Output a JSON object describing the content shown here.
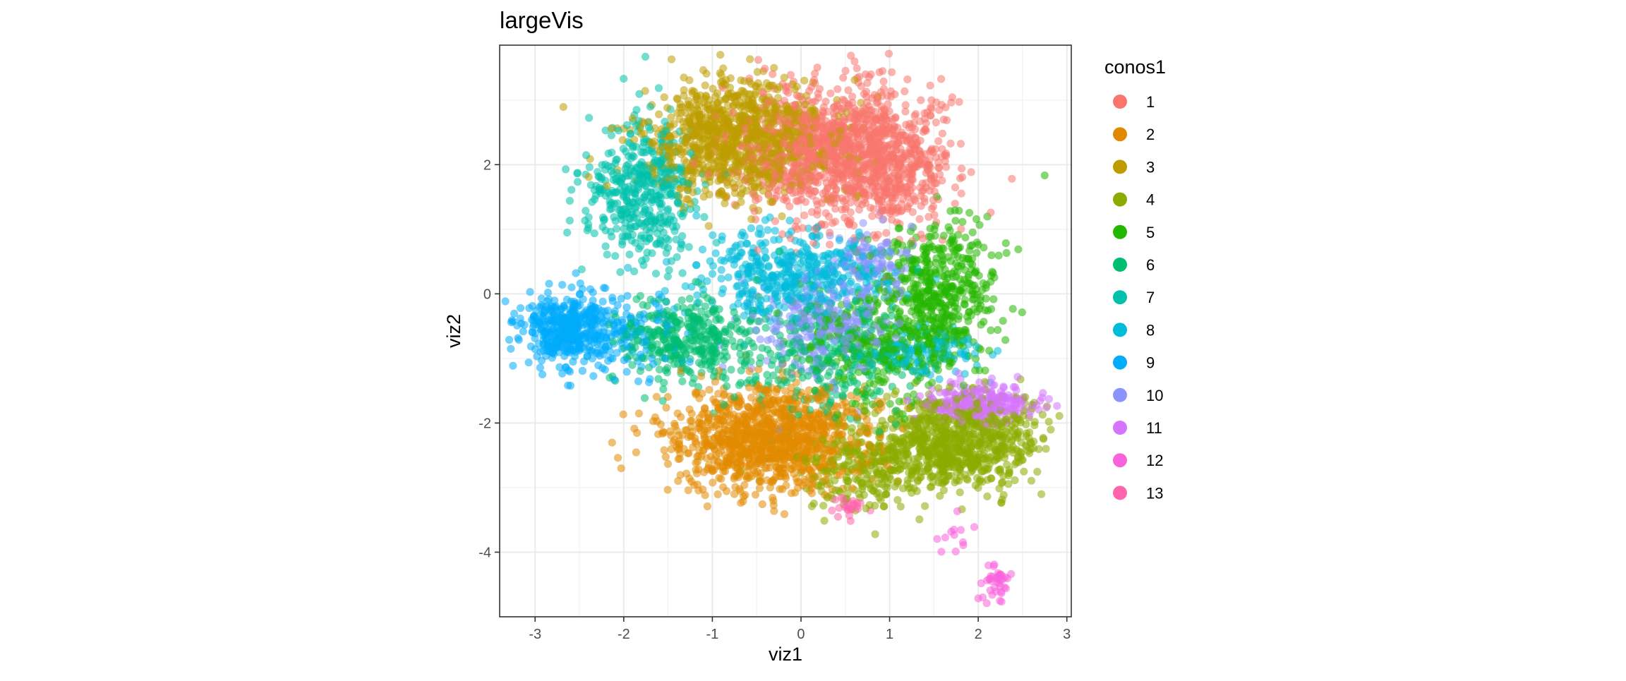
{
  "chart_data": {
    "type": "scatter",
    "title": "largeVis",
    "xlabel": "viz1",
    "ylabel": "viz2",
    "xlim": [
      -3.4,
      3.05
    ],
    "ylim": [
      -5.0,
      3.85
    ],
    "x_ticks": [
      -3,
      -2,
      -1,
      0,
      1,
      2,
      3
    ],
    "y_ticks": [
      -4,
      -2,
      0,
      2
    ],
    "grid": true,
    "legend": {
      "title": "conos1",
      "position": "right",
      "entries": [
        "1",
        "2",
        "3",
        "4",
        "5",
        "6",
        "7",
        "8",
        "9",
        "10",
        "11",
        "12",
        "13"
      ]
    },
    "series": [
      {
        "name": "1",
        "color": "#F8766D",
        "clusters": [
          {
            "cx": 0.35,
            "cy": 2.2,
            "sx": 0.5,
            "sy": 0.5,
            "n": 1100
          },
          {
            "cx": 1.1,
            "cy": 1.9,
            "sx": 0.3,
            "sy": 0.5,
            "n": 300
          }
        ]
      },
      {
        "name": "2",
        "color": "#E18A00",
        "clusters": [
          {
            "cx": -0.35,
            "cy": -2.25,
            "sx": 0.55,
            "sy": 0.4,
            "n": 1100
          }
        ]
      },
      {
        "name": "3",
        "color": "#BE9C00",
        "clusters": [
          {
            "cx": -0.7,
            "cy": 2.4,
            "sx": 0.5,
            "sy": 0.45,
            "n": 1000
          }
        ]
      },
      {
        "name": "4",
        "color": "#8CAB00",
        "clusters": [
          {
            "cx": 1.75,
            "cy": -2.3,
            "sx": 0.45,
            "sy": 0.35,
            "n": 800
          },
          {
            "cx": 0.7,
            "cy": -2.7,
            "sx": 0.35,
            "sy": 0.3,
            "n": 250
          }
        ]
      },
      {
        "name": "5",
        "color": "#24B700",
        "clusters": [
          {
            "cx": 1.55,
            "cy": 0.0,
            "sx": 0.35,
            "sy": 0.6,
            "n": 500
          },
          {
            "cx": 0.8,
            "cy": -0.8,
            "sx": 0.4,
            "sy": 0.45,
            "n": 250
          }
        ]
      },
      {
        "name": "6",
        "color": "#00BE70",
        "clusters": [
          {
            "cx": -1.3,
            "cy": -0.7,
            "sx": 0.4,
            "sy": 0.35,
            "n": 350
          },
          {
            "cx": 0.3,
            "cy": -1.0,
            "sx": 0.5,
            "sy": 0.5,
            "n": 300
          }
        ]
      },
      {
        "name": "7",
        "color": "#00C1AB",
        "clusters": [
          {
            "cx": -1.8,
            "cy": 1.6,
            "sx": 0.3,
            "sy": 0.55,
            "n": 450
          }
        ]
      },
      {
        "name": "8",
        "color": "#00BBDA",
        "clusters": [
          {
            "cx": -0.1,
            "cy": 0.3,
            "sx": 0.55,
            "sy": 0.35,
            "n": 450
          },
          {
            "cx": 1.4,
            "cy": -0.9,
            "sx": 0.35,
            "sy": 0.2,
            "n": 120
          }
        ]
      },
      {
        "name": "9",
        "color": "#00ACFC",
        "clusters": [
          {
            "cx": -2.7,
            "cy": -0.55,
            "sx": 0.22,
            "sy": 0.25,
            "n": 350
          },
          {
            "cx": -2.1,
            "cy": -0.6,
            "sx": 0.35,
            "sy": 0.35,
            "n": 200
          }
        ]
      },
      {
        "name": "10",
        "color": "#8B93FF",
        "clusters": [
          {
            "cx": 0.2,
            "cy": -0.5,
            "sx": 0.4,
            "sy": 0.4,
            "n": 250
          },
          {
            "cx": 0.8,
            "cy": 0.6,
            "sx": 0.25,
            "sy": 0.25,
            "n": 100
          }
        ]
      },
      {
        "name": "11",
        "color": "#D575FE",
        "clusters": [
          {
            "cx": 2.05,
            "cy": -1.7,
            "sx": 0.3,
            "sy": 0.15,
            "n": 250
          }
        ]
      },
      {
        "name": "12",
        "color": "#F962DD",
        "clusters": [
          {
            "cx": 2.2,
            "cy": -4.45,
            "sx": 0.08,
            "sy": 0.14,
            "n": 40
          },
          {
            "cx": 1.75,
            "cy": -3.8,
            "sx": 0.12,
            "sy": 0.15,
            "n": 12
          }
        ]
      },
      {
        "name": "13",
        "color": "#FF65AC",
        "clusters": [
          {
            "cx": 0.55,
            "cy": -3.3,
            "sx": 0.08,
            "sy": 0.08,
            "n": 25
          }
        ]
      }
    ]
  }
}
